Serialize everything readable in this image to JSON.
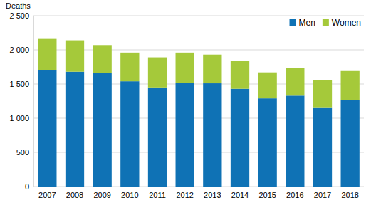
{
  "chart_data": {
    "type": "bar",
    "stacked": true,
    "y_label": "Deaths",
    "categories": [
      "2007",
      "2008",
      "2009",
      "2010",
      "2011",
      "2012",
      "2013",
      "2014",
      "2015",
      "2016",
      "2017",
      "2018"
    ],
    "series": [
      {
        "name": "Men",
        "color": "#0f72b5",
        "values": [
          1700,
          1680,
          1660,
          1540,
          1450,
          1520,
          1510,
          1430,
          1290,
          1330,
          1160,
          1270
        ]
      },
      {
        "name": "Women",
        "color": "#a5c93a",
        "values": [
          460,
          460,
          410,
          420,
          440,
          440,
          420,
          410,
          380,
          400,
          400,
          420
        ]
      }
    ],
    "ylim": [
      0,
      2500
    ],
    "yticks": [
      0,
      500,
      {
        "value": 1000,
        "label": "1 000"
      },
      {
        "value": 1500,
        "label": "1 500"
      },
      {
        "value": 2000,
        "label": "2 000"
      },
      {
        "value": 2500,
        "label": "2 500"
      }
    ],
    "grid": true,
    "legend": "upper right"
  }
}
